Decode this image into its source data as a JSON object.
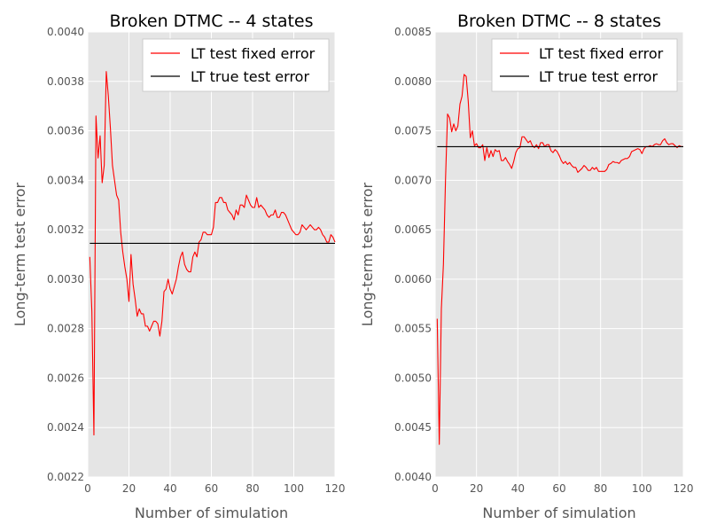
{
  "colors": {
    "fixed_error": "#ff0000",
    "true_error": "#000000",
    "plot_bg": "#e5e5e5",
    "grid": "#ffffff"
  },
  "chart_data": [
    {
      "type": "line",
      "title": "Broken DTMC -- 4 states",
      "xlabel": "Number of simulation",
      "ylabel": "Long-term test error",
      "xlim": [
        0,
        120
      ],
      "ylim": [
        0.0022,
        0.004
      ],
      "xticks": [
        "0",
        "20",
        "40",
        "60",
        "80",
        "100",
        "120"
      ],
      "yticks": [
        "0.0022",
        "0.0024",
        "0.0026",
        "0.0028",
        "0.0030",
        "0.0032",
        "0.0034",
        "0.0036",
        "0.0038",
        "0.0040"
      ],
      "grid": true,
      "legend_position": "top-right",
      "series": [
        {
          "name": "LT test fixed error",
          "color": "#ff0000",
          "x": [
            1,
            2,
            3,
            4,
            5,
            6,
            7,
            8,
            9,
            10,
            11,
            12,
            13,
            14,
            15,
            16,
            17,
            18,
            19,
            20,
            21,
            22,
            23,
            24,
            25,
            26,
            27,
            28,
            29,
            30,
            31,
            32,
            33,
            34,
            35,
            36,
            37,
            38,
            39,
            40,
            41,
            42,
            43,
            44,
            45,
            46,
            47,
            48,
            49,
            50,
            51,
            52,
            53,
            54,
            55,
            56,
            57,
            58,
            59,
            60,
            61,
            62,
            63,
            64,
            65,
            66,
            67,
            68,
            69,
            70,
            71,
            72,
            73,
            74,
            75,
            76,
            77,
            78,
            79,
            80,
            81,
            82,
            83,
            84,
            85,
            86,
            87,
            88,
            89,
            90,
            91,
            92,
            93,
            94,
            95,
            96,
            97,
            98,
            99,
            100,
            101,
            102,
            103,
            104,
            105,
            106,
            107,
            108,
            109,
            110,
            111,
            112,
            113,
            114,
            115,
            116,
            117,
            118,
            119,
            120
          ],
          "values": [
            0.00309,
            0.00287,
            0.00237,
            0.00366,
            0.00349,
            0.00358,
            0.00339,
            0.00346,
            0.00384,
            0.00374,
            0.00361,
            0.00346,
            0.0034,
            0.00334,
            0.00332,
            0.00319,
            0.00311,
            0.00305,
            0.003,
            0.00291,
            0.0031,
            0.00298,
            0.00292,
            0.00285,
            0.00288,
            0.00286,
            0.00286,
            0.00281,
            0.00281,
            0.00279,
            0.00281,
            0.00283,
            0.00283,
            0.00282,
            0.00277,
            0.00283,
            0.00295,
            0.00296,
            0.003,
            0.00296,
            0.00294,
            0.00297,
            0.003,
            0.00305,
            0.00309,
            0.00311,
            0.00306,
            0.00304,
            0.00303,
            0.00303,
            0.00309,
            0.00311,
            0.00309,
            0.00315,
            0.00316,
            0.00319,
            0.00319,
            0.00318,
            0.00318,
            0.00318,
            0.00321,
            0.00331,
            0.00331,
            0.00333,
            0.00333,
            0.00331,
            0.00331,
            0.00328,
            0.00327,
            0.00326,
            0.00324,
            0.00328,
            0.00326,
            0.0033,
            0.0033,
            0.00329,
            0.00334,
            0.00332,
            0.0033,
            0.00329,
            0.00329,
            0.00333,
            0.00329,
            0.0033,
            0.00329,
            0.00328,
            0.00326,
            0.00325,
            0.00326,
            0.00326,
            0.00328,
            0.00325,
            0.00325,
            0.00327,
            0.00327,
            0.00326,
            0.00324,
            0.00322,
            0.0032,
            0.00319,
            0.00318,
            0.00318,
            0.00319,
            0.00322,
            0.00321,
            0.0032,
            0.00321,
            0.00322,
            0.00321,
            0.0032,
            0.0032,
            0.00321,
            0.0032,
            0.00318,
            0.00317,
            0.00315,
            0.00315,
            0.00318,
            0.00317,
            0.00315
          ]
        },
        {
          "name": "LT true test error",
          "color": "#000000",
          "x": [
            1,
            120
          ],
          "values": [
            0.003145,
            0.003145
          ]
        }
      ]
    },
    {
      "type": "line",
      "title": "Broken DTMC -- 8 states",
      "xlabel": "Number of simulation",
      "ylabel": "Long-term test error",
      "xlim": [
        0,
        120
      ],
      "ylim": [
        0.004,
        0.0085
      ],
      "xticks": [
        "0",
        "20",
        "40",
        "60",
        "80",
        "100",
        "120"
      ],
      "yticks": [
        "0.0040",
        "0.0045",
        "0.0050",
        "0.0055",
        "0.0060",
        "0.0065",
        "0.0070",
        "0.0075",
        "0.0080",
        "0.0085"
      ],
      "grid": true,
      "legend_position": "top-right",
      "series": [
        {
          "name": "LT test fixed error",
          "color": "#ff0000",
          "x": [
            1,
            2,
            3,
            4,
            5,
            6,
            7,
            8,
            9,
            10,
            11,
            12,
            13,
            14,
            15,
            16,
            17,
            18,
            19,
            20,
            21,
            22,
            23,
            24,
            25,
            26,
            27,
            28,
            29,
            30,
            31,
            32,
            33,
            34,
            35,
            36,
            37,
            38,
            39,
            40,
            41,
            42,
            43,
            44,
            45,
            46,
            47,
            48,
            49,
            50,
            51,
            52,
            53,
            54,
            55,
            56,
            57,
            58,
            59,
            60,
            61,
            62,
            63,
            64,
            65,
            66,
            67,
            68,
            69,
            70,
            71,
            72,
            73,
            74,
            75,
            76,
            77,
            78,
            79,
            80,
            81,
            82,
            83,
            84,
            85,
            86,
            87,
            88,
            89,
            90,
            91,
            92,
            93,
            94,
            95,
            96,
            97,
            98,
            99,
            100,
            101,
            102,
            103,
            104,
            105,
            106,
            107,
            108,
            109,
            110,
            111,
            112,
            113,
            114,
            115,
            116,
            117,
            118,
            119,
            120
          ],
          "values": [
            0.0056,
            0.00433,
            0.0057,
            0.00615,
            0.007,
            0.00767,
            0.00763,
            0.00749,
            0.00757,
            0.0075,
            0.00755,
            0.00777,
            0.00785,
            0.00807,
            0.00805,
            0.0078,
            0.00743,
            0.0075,
            0.00735,
            0.00737,
            0.00733,
            0.00733,
            0.00736,
            0.0072,
            0.00733,
            0.00723,
            0.0073,
            0.00724,
            0.00731,
            0.00729,
            0.0073,
            0.0072,
            0.0072,
            0.00723,
            0.00719,
            0.00716,
            0.00712,
            0.00719,
            0.00728,
            0.00732,
            0.00733,
            0.00744,
            0.00744,
            0.00741,
            0.00738,
            0.0074,
            0.00735,
            0.00733,
            0.00736,
            0.00732,
            0.00738,
            0.00738,
            0.00734,
            0.00736,
            0.00736,
            0.0073,
            0.00728,
            0.00731,
            0.00729,
            0.00725,
            0.0072,
            0.00717,
            0.00719,
            0.00716,
            0.00718,
            0.00715,
            0.00713,
            0.00713,
            0.00708,
            0.0071,
            0.00712,
            0.00715,
            0.00713,
            0.0071,
            0.0071,
            0.00713,
            0.00711,
            0.00713,
            0.00709,
            0.00709,
            0.00709,
            0.00709,
            0.00711,
            0.00716,
            0.00717,
            0.00719,
            0.00718,
            0.00718,
            0.00717,
            0.0072,
            0.00721,
            0.00722,
            0.00722,
            0.00724,
            0.00729,
            0.0073,
            0.00731,
            0.00732,
            0.00731,
            0.00727,
            0.00732,
            0.00734,
            0.00734,
            0.00735,
            0.00734,
            0.00736,
            0.00737,
            0.00736,
            0.00736,
            0.0074,
            0.00742,
            0.00738,
            0.00736,
            0.00737,
            0.00737,
            0.00735,
            0.00733,
            0.00735,
            0.00734,
            0.00734
          ]
        },
        {
          "name": "LT true test error",
          "color": "#000000",
          "x": [
            1,
            120
          ],
          "values": [
            0.00734,
            0.00734
          ]
        }
      ]
    }
  ]
}
